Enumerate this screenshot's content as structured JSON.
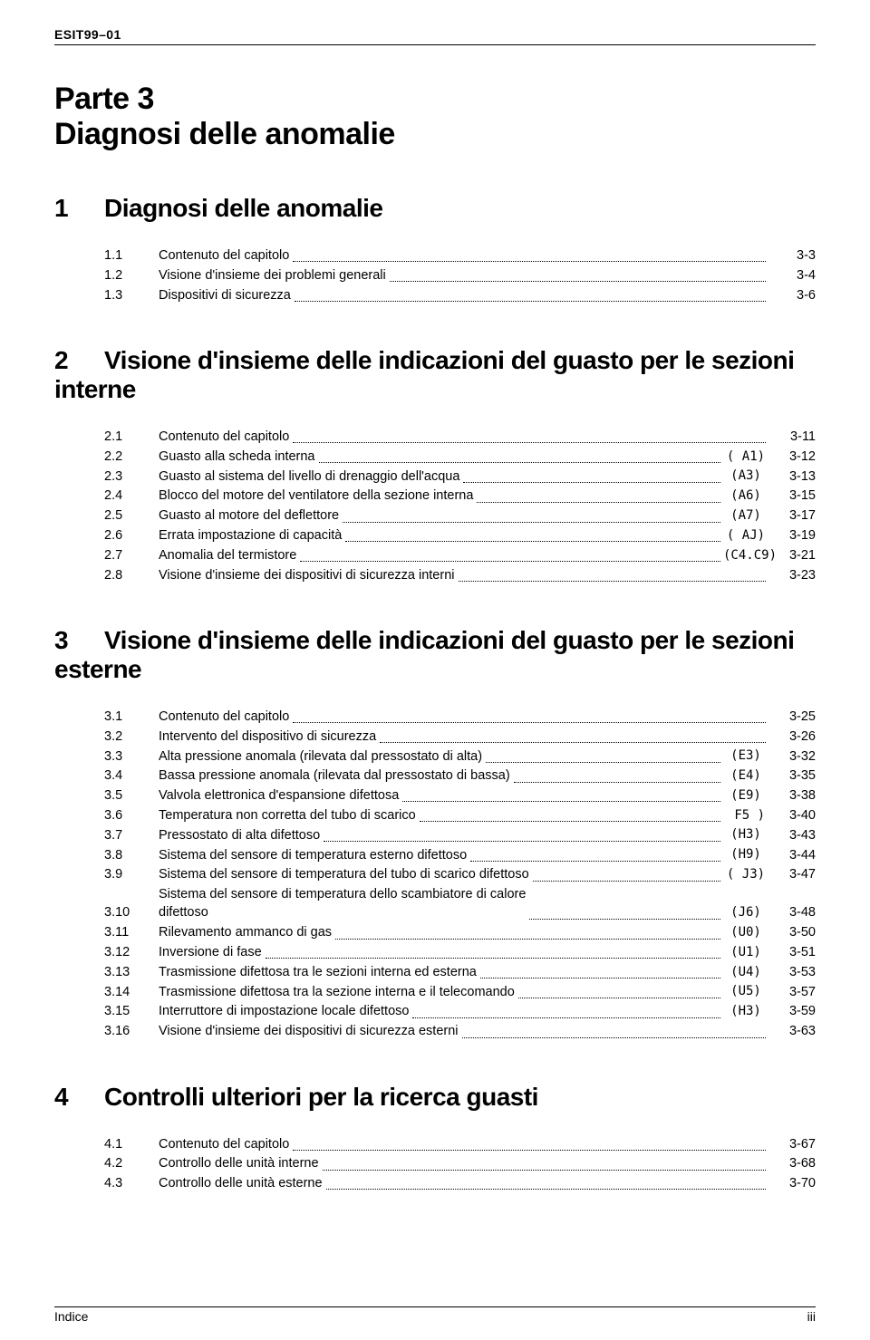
{
  "header_code": "ESIT99–01",
  "part": {
    "line1": "Parte 3",
    "line2": "Diagnosi delle anomalie"
  },
  "sections": [
    {
      "num": "1",
      "title": "Diagnosi delle anomalie",
      "entries": [
        {
          "num": "1.1",
          "title": "Contenuto del capitolo",
          "code": "",
          "page": "3-3"
        },
        {
          "num": "1.2",
          "title": "Visione d'insieme dei problemi generali",
          "code": "",
          "page": "3-4"
        },
        {
          "num": "1.3",
          "title": "Dispositivi di sicurezza",
          "code": "",
          "page": "3-6"
        }
      ]
    },
    {
      "num": "2",
      "title": "Visione d'insieme delle indicazioni del guasto per le sezioni interne",
      "entries": [
        {
          "num": "2.1",
          "title": "Contenuto del capitolo",
          "code": "",
          "page": "3-11"
        },
        {
          "num": "2.2",
          "title": "Guasto alla scheda interna",
          "code": "( A1)",
          "page": "3-12"
        },
        {
          "num": "2.3",
          "title": "Guasto al sistema del livello di drenaggio dell'acqua",
          "code": "(A3)",
          "page": "3-13"
        },
        {
          "num": "2.4",
          "title": "Blocco del motore del ventilatore della sezione interna",
          "code": "(A6)",
          "page": "3-15"
        },
        {
          "num": "2.5",
          "title": "Guasto al motore del deflettore",
          "code": "(A7)",
          "page": "3-17"
        },
        {
          "num": "2.6",
          "title": "Errata impostazione di capacità",
          "code": "( AJ)",
          "page": "3-19"
        },
        {
          "num": "2.7",
          "title": "Anomalia del termistore",
          "code": "(C4.C9)",
          "page": "3-21"
        },
        {
          "num": "2.8",
          "title": "Visione d'insieme dei dispositivi di sicurezza interni",
          "code": "",
          "page": "3-23"
        }
      ]
    },
    {
      "num": "3",
      "title": "Visione d'insieme delle indicazioni del guasto per le sezioni esterne",
      "entries": [
        {
          "num": "3.1",
          "title": "Contenuto del capitolo",
          "code": "",
          "page": "3-25"
        },
        {
          "num": "3.2",
          "title": "Intervento del dispositivo di sicurezza",
          "code": "",
          "page": "3-26"
        },
        {
          "num": "3.3",
          "title": "Alta pressione anomala (rilevata dal pressostato di alta)",
          "code": "(E3)",
          "page": "3-32"
        },
        {
          "num": "3.4",
          "title": "Bassa pressione anomala (rilevata dal pressostato di bassa)",
          "code": "(E4)",
          "page": "3-35"
        },
        {
          "num": "3.5",
          "title": "Valvola elettronica d'espansione difettosa",
          "code": "(E9)",
          "page": "3-38"
        },
        {
          "num": "3.6",
          "title": "Temperatura non corretta del tubo di scarico",
          "code": " F5 )",
          "page": "3-40"
        },
        {
          "num": "3.7",
          "title": "Pressostato di alta difettoso",
          "code": "(H3)",
          "page": "3-43"
        },
        {
          "num": "3.8",
          "title": "Sistema del sensore di temperatura esterno difettoso",
          "code": "(H9)",
          "page": "3-44"
        },
        {
          "num": "3.9",
          "title": "Sistema del sensore di temperatura del tubo di scarico difettoso",
          "code": "( J3)",
          "page": "3-47"
        },
        {
          "num": "3.10",
          "title": "Sistema del sensore di temperatura dello scambiatore di calore\ndifettoso",
          "code": "(J6)",
          "page": "3-48"
        },
        {
          "num": "3.11",
          "title": "Rilevamento ammanco di gas",
          "code": "(U0)",
          "page": "3-50"
        },
        {
          "num": "3.12",
          "title": "Inversione di fase",
          "code": "(U1)",
          "page": "3-51"
        },
        {
          "num": "3.13",
          "title": "Trasmissione difettosa tra le sezioni interna ed esterna",
          "code": "(U4)",
          "page": "3-53"
        },
        {
          "num": "3.14",
          "title": "Trasmissione difettosa tra la sezione interna e il telecomando",
          "code": "(U5)",
          "page": "3-57"
        },
        {
          "num": "3.15",
          "title": "Interruttore di impostazione locale difettoso",
          "code": "(H3)",
          "page": "3-59"
        },
        {
          "num": "3.16",
          "title": "Visione d'insieme dei dispositivi di sicurezza esterni",
          "code": "",
          "page": "3-63"
        }
      ]
    },
    {
      "num": "4",
      "title": "Controlli ulteriori per la ricerca guasti",
      "entries": [
        {
          "num": "4.1",
          "title": "Contenuto del capitolo",
          "code": "",
          "page": "3-67"
        },
        {
          "num": "4.2",
          "title": "Controllo delle unità interne",
          "code": "",
          "page": "3-68"
        },
        {
          "num": "4.3",
          "title": "Controllo delle unità esterne",
          "code": "",
          "page": "3-70"
        }
      ]
    }
  ],
  "footer": {
    "left": "Indice",
    "right": "iii"
  }
}
